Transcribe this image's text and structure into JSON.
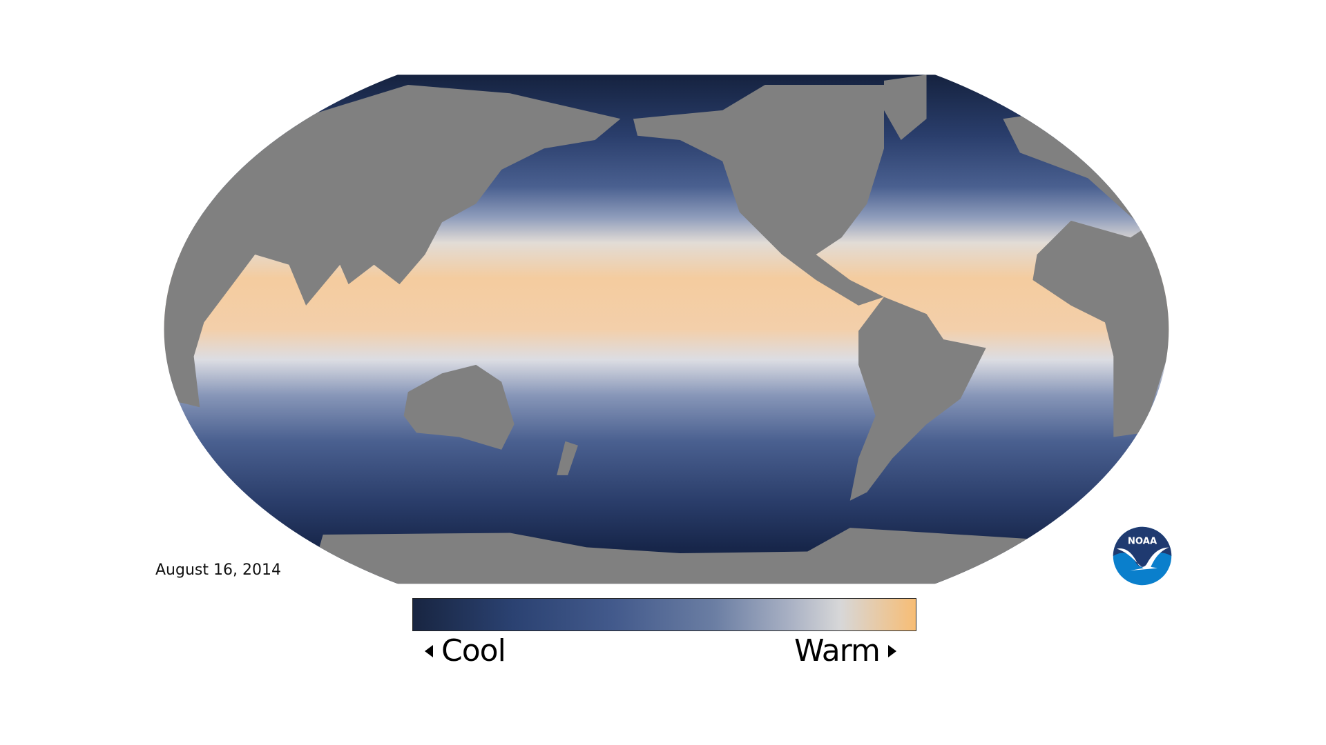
{
  "map": {
    "date": "August 16, 2014",
    "land_color": "#808080",
    "ocean_colors": [
      "#15223f",
      "#2d4272",
      "#5a6e99",
      "#d8dbe2",
      "#f5c99b"
    ]
  },
  "colorbar": {
    "low_label": "Cool",
    "high_label": "Warm",
    "stops": [
      "#182541",
      "#2b4272",
      "#435a8c",
      "#6b7ea3",
      "#a9b1c4",
      "#d7d7d8",
      "#f7bd75"
    ]
  },
  "logo": {
    "text": "NOAA",
    "dark": "#1f3a70",
    "light": "#0a7fcc"
  }
}
